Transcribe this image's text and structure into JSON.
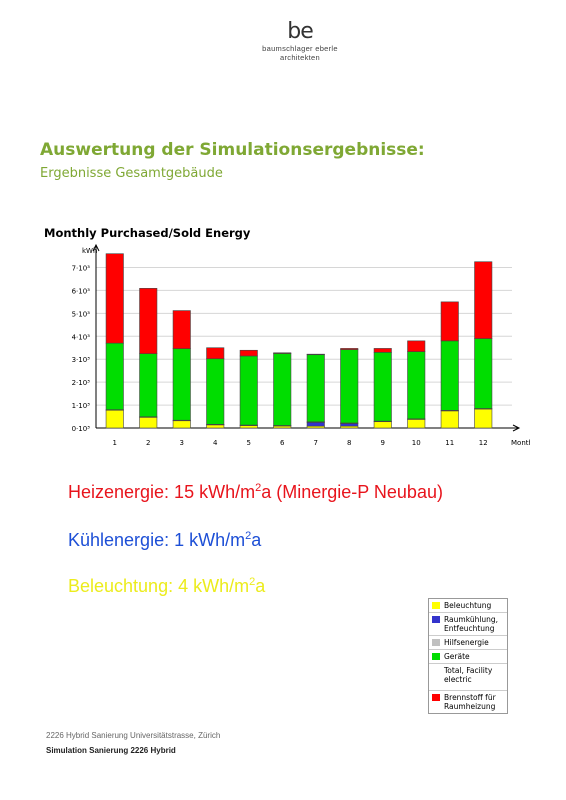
{
  "logo": {
    "mark": "be",
    "line1": "baumschlager eberle",
    "line2": "architekten"
  },
  "heading": {
    "title": "Auswertung der Simulationsergebnisse:",
    "subtitle": "Ergebnisse Gesamtgebäude"
  },
  "chart_data": {
    "type": "bar",
    "stacked": true,
    "title": "Monthly Purchased/Sold Energy",
    "ylabel": "kWh",
    "xlabel": "Month",
    "ylim": [
      0,
      7500
    ],
    "yticks": [
      0,
      1000,
      2000,
      3000,
      4000,
      5000,
      6000,
      7000
    ],
    "ytick_labels": [
      "0·10³",
      "1·10³",
      "2·10³",
      "3·10³",
      "4·10³",
      "5·10³",
      "6·10³",
      "7·10³"
    ],
    "grid": true,
    "categories": [
      "1",
      "2",
      "3",
      "4",
      "5",
      "6",
      "7",
      "8",
      "9",
      "10",
      "11",
      "12"
    ],
    "series": [
      {
        "name": "Beleuchtung",
        "color": "#ffff00",
        "values": [
          780,
          470,
          320,
          140,
          110,
          90,
          80,
          80,
          280,
          380,
          750,
          830
        ]
      },
      {
        "name": "Raumkühlung, Entfeuchtung",
        "color": "#3333cc",
        "values": [
          0,
          0,
          0,
          0,
          0,
          0,
          170,
          120,
          0,
          0,
          0,
          0
        ]
      },
      {
        "name": "Hilfsenergie",
        "color": "#c0c0c0",
        "values": [
          20,
          20,
          20,
          20,
          20,
          20,
          20,
          20,
          20,
          20,
          20,
          20
        ]
      },
      {
        "name": "Geräte",
        "color": "#00dd00",
        "values": [
          2900,
          2750,
          3120,
          2860,
          3010,
          3140,
          2930,
          3200,
          3000,
          2930,
          3030,
          3050
        ]
      },
      {
        "name": "Brennstoff für Raumheizung",
        "color": "#ff0000",
        "values": [
          3900,
          2850,
          1660,
          480,
          250,
          30,
          20,
          50,
          170,
          470,
          1700,
          3350
        ]
      }
    ]
  },
  "legend": {
    "items": [
      {
        "label": "Beleuchtung",
        "color": "#ffff00"
      },
      {
        "label": "Raumkühlung, Entfeuchtung",
        "color": "#3333cc"
      },
      {
        "label": "Hilfsenergie",
        "color": "#c0c0c0"
      },
      {
        "label": "Geräte",
        "color": "#00dd00"
      },
      {
        "label": "Total, Facility electric",
        "color": ""
      },
      {
        "label": "Brennstoff für Raumheizung",
        "color": "#ff0000"
      }
    ]
  },
  "stats": {
    "heiz_text": "Heizenergie: 15 kWh/m",
    "heiz_sup": "2",
    "heiz_tail": "a (Minergie-P Neubau)",
    "kuehl_text": "Kühlenergie: 1 kWh/m",
    "kuehl_sup": "2",
    "kuehl_tail": "a",
    "bel_text": "Beleuchtung: 4 kWh/m",
    "bel_sup": "2",
    "bel_tail": "a"
  },
  "footer": {
    "line1": "2226 Hybrid Sanierung Universitätstrasse, Zürich",
    "line2": "Simulation Sanierung 2226 Hybrid"
  }
}
